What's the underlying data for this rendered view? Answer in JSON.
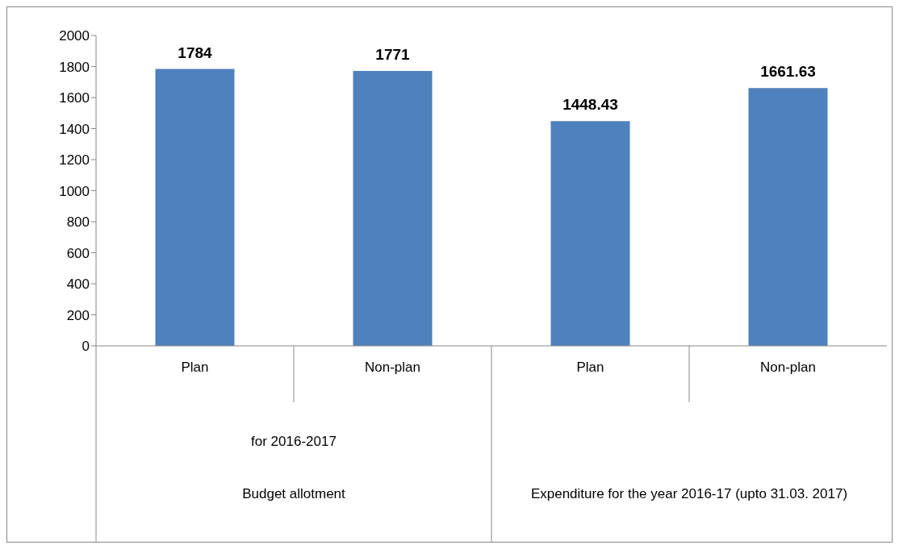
{
  "chart_data": {
    "type": "bar",
    "categories": [
      "Plan",
      "Non-plan",
      "Plan",
      "Non-plan"
    ],
    "values": [
      1784,
      1771,
      1448.43,
      1661.63
    ],
    "color": "#4f81bd",
    "ylim": [
      0,
      2000
    ],
    "yticks": [
      0,
      200,
      400,
      600,
      800,
      1000,
      1200,
      1400,
      1600,
      1800,
      2000
    ],
    "data_labels": true,
    "grid": false,
    "legend": false,
    "annotations": [
      "for 2016-2017",
      "Budget allotment",
      "Expenditure for the year 2016-17 (upto 31.03. 2017)"
    ]
  }
}
